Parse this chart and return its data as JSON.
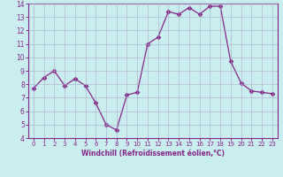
{
  "x": [
    0,
    1,
    2,
    3,
    4,
    5,
    6,
    7,
    8,
    9,
    10,
    11,
    12,
    13,
    14,
    15,
    16,
    17,
    18,
    19,
    20,
    21,
    22,
    23
  ],
  "y": [
    7.7,
    8.5,
    9.0,
    7.9,
    8.4,
    7.9,
    6.6,
    5.0,
    4.6,
    7.2,
    7.4,
    11.0,
    11.5,
    13.4,
    13.2,
    13.7,
    13.2,
    13.8,
    13.8,
    9.7,
    8.1,
    7.5,
    7.4,
    7.3
  ],
  "line_color": "#882288",
  "marker_color": "#882288",
  "bg_color": "#c8eef0",
  "grid_color": "#aaaacc",
  "xlabel": "Windchill (Refroidissement éolien,°C)",
  "xlabel_color": "#882288",
  "tick_color": "#882288",
  "ylim": [
    4,
    14
  ],
  "xlim": [
    -0.5,
    23.5
  ],
  "yticks": [
    4,
    5,
    6,
    7,
    8,
    9,
    10,
    11,
    12,
    13,
    14
  ],
  "xticks": [
    0,
    1,
    2,
    3,
    4,
    5,
    6,
    7,
    8,
    9,
    10,
    11,
    12,
    13,
    14,
    15,
    16,
    17,
    18,
    19,
    20,
    21,
    22,
    23
  ]
}
